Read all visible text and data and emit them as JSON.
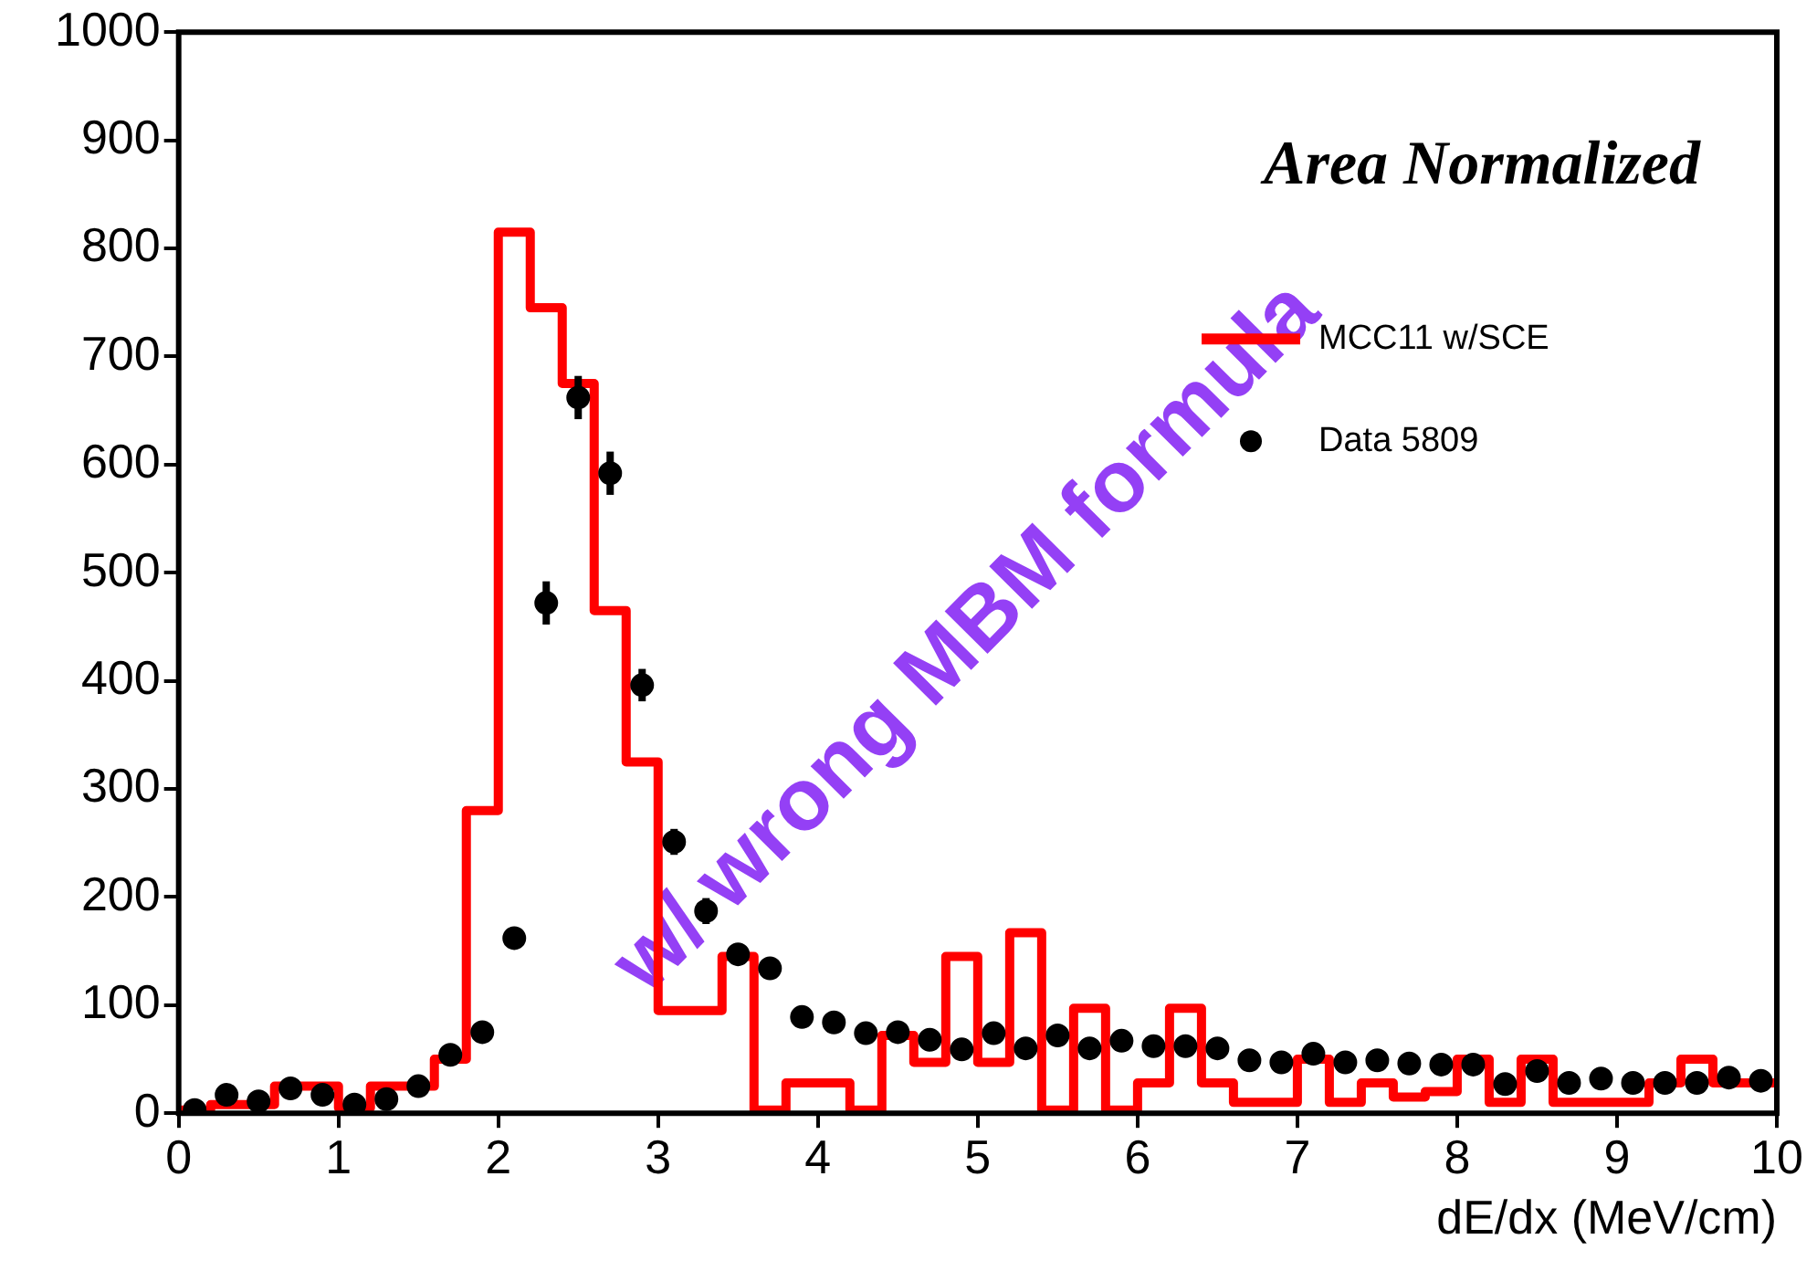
{
  "chart_data": {
    "type": "histogram",
    "xlabel": "dE/dx (MeV/cm)",
    "annotations": [
      "Area Normalized",
      "w/ wrong MBM formula"
    ],
    "xlim": [
      0,
      10
    ],
    "xticks": [
      0,
      1,
      2,
      3,
      4,
      5,
      6,
      7,
      8,
      9,
      10
    ],
    "ylim": [
      0,
      1000
    ],
    "yticks": [
      0,
      100,
      200,
      300,
      400,
      500,
      600,
      700,
      800,
      900,
      1000
    ],
    "grid": false,
    "legend": "top right",
    "marker": "circle",
    "line_style": "solid",
    "bins": [
      0,
      0.2,
      0.4,
      0.6,
      0.8,
      1,
      1.2,
      1.4,
      1.6,
      1.8,
      2,
      2.2,
      2.4,
      2.6,
      2.8,
      3,
      3.2,
      3.4,
      3.6,
      3.8,
      4,
      4.2,
      4.4,
      4.6,
      4.8,
      5,
      5.2,
      5.4,
      5.6,
      5.8,
      6,
      6.2,
      6.4,
      6.6,
      6.8,
      7,
      7.2,
      7.4,
      7.6,
      7.8,
      8,
      8.2,
      8.4,
      8.6,
      8.8,
      9,
      9.2,
      9.4,
      9.6,
      9.8,
      10
    ],
    "series": [
      {
        "name": "MCC11 w/SCE",
        "color": "#ff0000",
        "values": [
          3,
          8,
          8,
          25,
          25,
          5,
          25,
          25,
          50,
          280,
          815,
          745,
          675,
          465,
          325,
          95,
          95,
          145,
          3,
          28,
          28,
          3,
          72,
          47,
          145,
          47,
          167,
          3,
          97,
          3,
          28,
          97,
          28,
          10,
          10,
          50,
          10,
          28,
          15,
          20,
          50,
          10,
          50,
          10,
          10,
          10,
          28,
          50,
          28,
          28
        ]
      },
      {
        "type": "scatter",
        "name": "Data 5809",
        "color": "#000000",
        "x": [
          0.1,
          0.3,
          0.5,
          0.7,
          0.9,
          1.1,
          1.3,
          1.5,
          1.7,
          1.9,
          2.1,
          2.3,
          2.5,
          2.7,
          2.9,
          3.1,
          3.3,
          3.5,
          3.7,
          3.9,
          4.1,
          4.3,
          4.5,
          4.7,
          4.9,
          5.1,
          5.3,
          5.5,
          5.7,
          5.9,
          6.1,
          6.3,
          6.5,
          6.7,
          6.9,
          7.1,
          7.3,
          7.5,
          7.7,
          7.9,
          8.1,
          8.3,
          8.5,
          8.7,
          8.9,
          9.1,
          9.3,
          9.5,
          9.7,
          9.9
        ],
        "values": [
          3,
          17,
          11,
          23,
          17,
          8,
          13,
          25,
          54,
          75,
          162,
          472,
          662,
          592,
          396,
          251,
          187,
          147,
          134,
          89,
          84,
          74,
          75,
          68,
          59,
          74,
          60,
          72,
          60,
          67,
          62,
          62,
          60,
          49,
          47,
          55,
          47,
          49,
          46,
          45,
          45,
          27,
          39,
          28,
          32,
          28,
          28,
          28,
          33,
          30
        ],
        "errors": [
          null,
          null,
          null,
          null,
          null,
          null,
          null,
          null,
          null,
          null,
          10,
          20,
          20,
          20,
          15,
          12,
          12,
          8,
          null,
          null,
          null,
          null,
          null,
          null,
          null,
          null,
          null,
          null,
          null,
          null,
          null,
          null,
          null,
          null,
          null,
          null,
          null,
          null,
          null,
          null,
          null,
          null,
          null,
          null,
          null,
          null,
          null,
          null,
          null,
          null
        ]
      }
    ]
  }
}
